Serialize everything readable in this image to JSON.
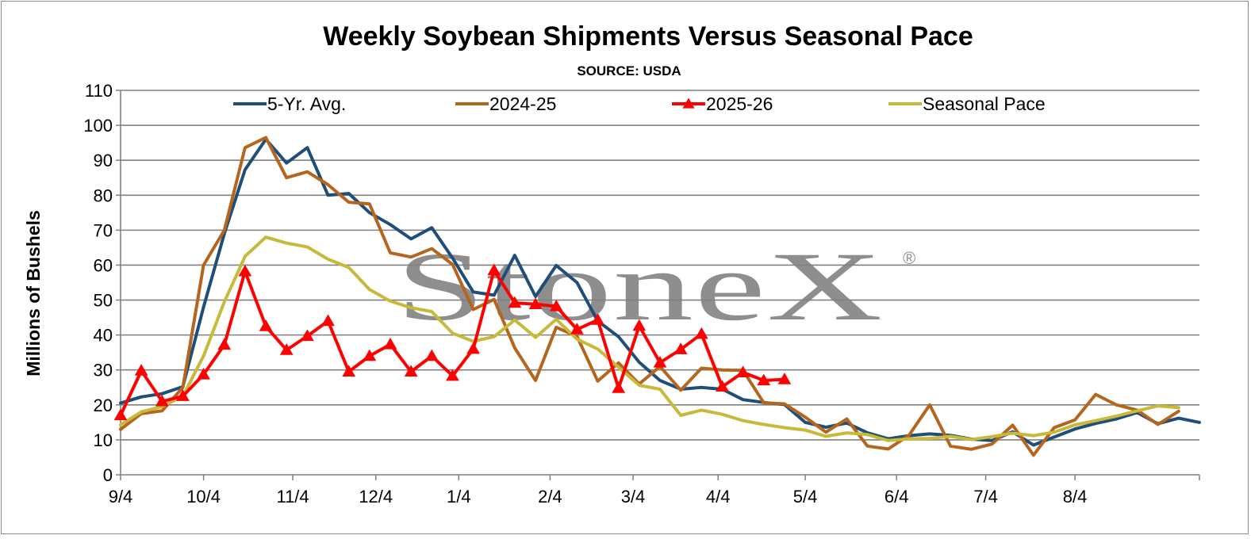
{
  "chart_data": {
    "type": "line",
    "title": "Weekly Soybean Shipments Versus Seasonal Pace",
    "subtitle": "SOURCE: USDA",
    "ylabel": "Millions of Bushels",
    "xlabel": "",
    "ylim": [
      0,
      110
    ],
    "yticks": [
      0,
      10,
      20,
      30,
      40,
      50,
      60,
      70,
      80,
      90,
      100,
      110
    ],
    "xlim": [
      0,
      52
    ],
    "xtick_labels": [
      {
        "label": "9/4",
        "week": 0
      },
      {
        "label": "10/4",
        "week": 4
      },
      {
        "label": "11/4",
        "week": 8.3
      },
      {
        "label": "12/4",
        "week": 12.3
      },
      {
        "label": "1/4",
        "week": 16.3
      },
      {
        "label": "2/4",
        "week": 20.7
      },
      {
        "label": "3/4",
        "week": 24.7
      },
      {
        "label": "4/4",
        "week": 28.8
      },
      {
        "label": "5/4",
        "week": 33
      },
      {
        "label": "6/4",
        "week": 37.4
      },
      {
        "label": "7/4",
        "week": 41.7
      },
      {
        "label": "8/4",
        "week": 46
      }
    ],
    "grid": "horizontal",
    "legend_position": "top",
    "watermark": "StoneX®",
    "series": [
      {
        "name": "5-Yr. Avg.",
        "color": "#1f4e79",
        "marker": "none",
        "values": [
          20.5,
          22.3,
          23.2,
          25.2,
          48,
          69,
          87.3,
          96,
          89.2,
          93.6,
          80,
          80.5,
          75,
          71.6,
          67.5,
          70.7,
          62,
          52.3,
          51.4,
          62.8,
          51,
          59.9,
          55,
          44,
          39.5,
          32.2,
          27,
          24.5,
          25,
          24.5,
          21.5,
          20.7,
          20.1,
          15,
          13.6,
          14.8,
          12,
          10.3,
          11.2,
          11.7,
          11.3,
          10.2,
          9.8,
          12.3,
          8.5,
          10.8,
          13.1,
          14.7,
          16,
          17.8,
          14.6,
          16.2,
          15
        ]
      },
      {
        "name": "2024-25",
        "color": "#b5651d",
        "marker": "none",
        "values": [
          13,
          17.5,
          18.3,
          25,
          60,
          70,
          93.6,
          96.5,
          85,
          86.7,
          83,
          78,
          77.5,
          63.5,
          62.3,
          64.7,
          60.2,
          47.3,
          50.2,
          36.3,
          27,
          42.2,
          39.6,
          26.8,
          32,
          26,
          31,
          24.2,
          30.5,
          30,
          29.9,
          20.6,
          20.3,
          16.5,
          12.2,
          16,
          8.2,
          7.4,
          11.3,
          20,
          8.2,
          7.3,
          8.8,
          14.2,
          5.6,
          13.5,
          15.7,
          23,
          20,
          18.5,
          14.4,
          18.2
        ]
      },
      {
        "name": "2025-26",
        "color": "#ff0000",
        "marker": "triangle",
        "values": [
          17,
          29.8,
          21,
          22.5,
          28.7,
          37.2,
          58.2,
          42.5,
          35.7,
          39.7,
          44,
          29.5,
          34,
          37.3,
          29.5,
          34,
          28.3,
          36,
          58.5,
          49.2,
          48.8,
          48.2,
          41.6,
          44.3,
          24.8,
          42.6,
          32.1,
          35.9,
          40.3,
          25.2,
          29.3,
          27,
          27.3
        ]
      },
      {
        "name": "Seasonal Pace",
        "color": "#c8b93a",
        "marker": "none",
        "values": [
          14.3,
          18,
          19.5,
          22.5,
          34,
          49.5,
          62.5,
          68,
          66.3,
          65.2,
          61.7,
          59.3,
          53,
          49.7,
          47.8,
          46.7,
          40.5,
          38.2,
          39.5,
          44.3,
          39.3,
          44.5,
          38.8,
          36,
          30.8,
          25.6,
          24.5,
          17,
          18.5,
          17.3,
          15.5,
          14.4,
          13.5,
          12.8,
          11,
          12,
          11.5,
          9.8,
          10.3,
          10.4,
          11,
          10.1,
          10.9,
          11.9,
          11.2,
          12.2,
          14.3,
          15.5,
          16.8,
          18.3,
          19.7,
          19.2
        ]
      }
    ]
  }
}
